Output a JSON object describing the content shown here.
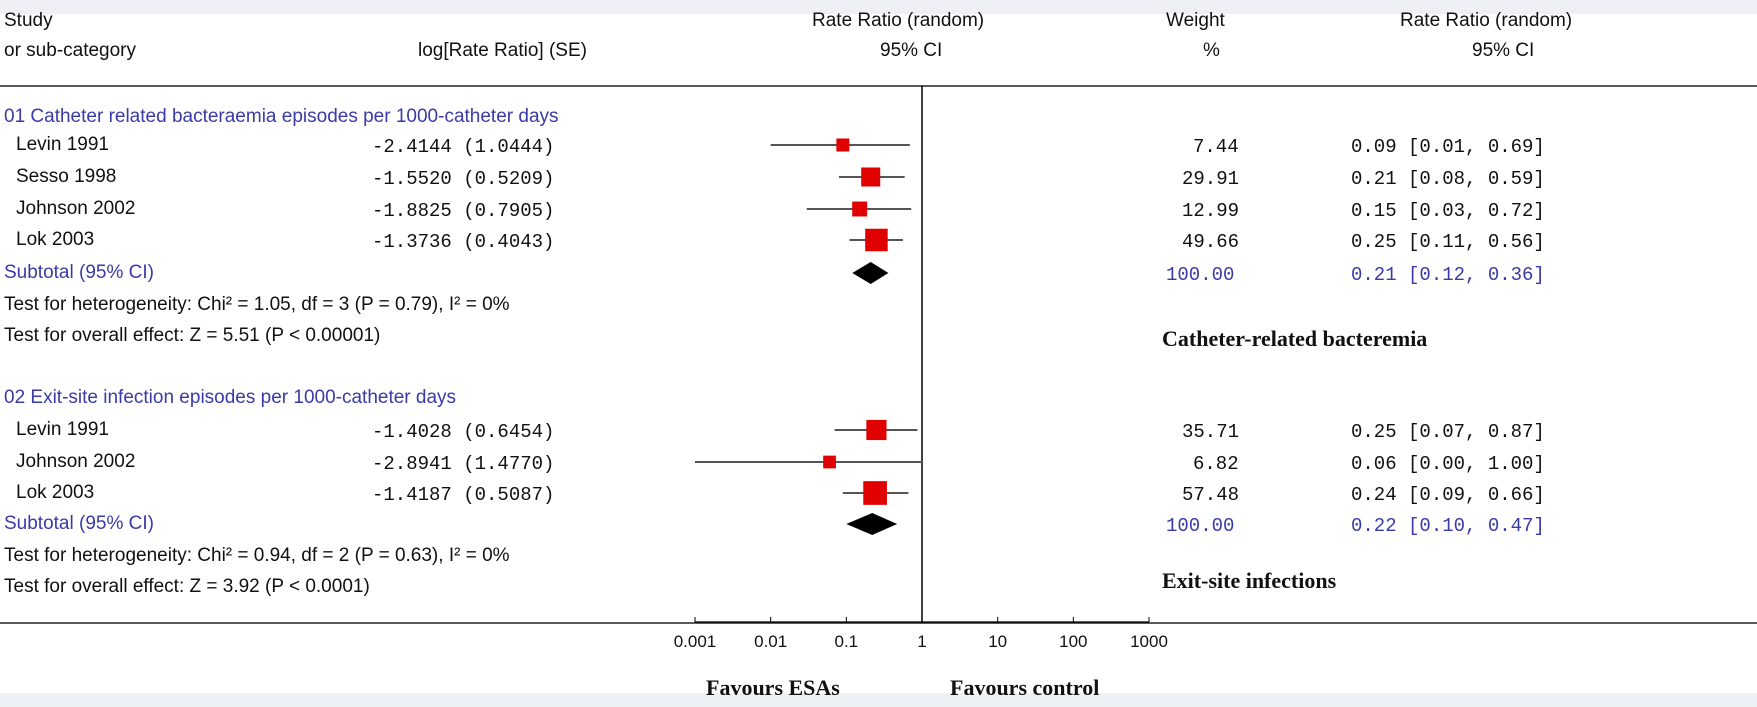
{
  "header": {
    "study_l1": "Study",
    "study_l2": "or sub-category",
    "logrr": "log[Rate Ratio] (SE)",
    "rr_l1": "Rate Ratio (random)",
    "rr_l2": "95% CI",
    "weight_l1": "Weight",
    "weight_l2": "%",
    "rr2_l1": "Rate Ratio (random)",
    "rr2_l2": "95% CI"
  },
  "groups": [
    {
      "title": "01 Catheter related bacteraemia episodes per 1000-catheter days",
      "studies": [
        {
          "name": "Levin 1991",
          "logrr": "-2.4144 (1.0444)",
          "weight": "7.44",
          "ci_text": "0.09 [0.01, 0.69]"
        },
        {
          "name": "Sesso 1998",
          "logrr": "-1.5520 (0.5209)",
          "weight": "29.91",
          "ci_text": "0.21 [0.08, 0.59]"
        },
        {
          "name": "Johnson 2002",
          "logrr": "-1.8825 (0.7905)",
          "weight": "12.99",
          "ci_text": "0.15 [0.03, 0.72]"
        },
        {
          "name": "Lok 2003",
          "logrr": "-1.3736 (0.4043)",
          "weight": "49.66",
          "ci_text": "0.25 [0.11, 0.56]"
        }
      ],
      "subtotal": {
        "label": "Subtotal (95% CI)",
        "weight": "100.00",
        "ci_text": "0.21 [0.12, 0.36]"
      },
      "heterogeneity": "Test for heterogeneity: Chi² = 1.05, df = 3 (P = 0.79), I² = 0%",
      "overall": "Test for overall effect: Z = 5.51 (P < 0.00001)",
      "annotation": "Catheter-related bacteremia"
    },
    {
      "title": "02 Exit-site infection episodes per 1000-catheter days",
      "studies": [
        {
          "name": "Levin 1991",
          "logrr": "-1.4028 (0.6454)",
          "weight": "35.71",
          "ci_text": "0.25 [0.07, 0.87]"
        },
        {
          "name": "Johnson 2002",
          "logrr": "-2.8941 (1.4770)",
          "weight": "6.82",
          "ci_text": "0.06 [0.00, 1.00]"
        },
        {
          "name": "Lok 2003",
          "logrr": "-1.4187 (0.5087)",
          "weight": "57.48",
          "ci_text": "0.24 [0.09, 0.66]"
        }
      ],
      "subtotal": {
        "label": "Subtotal (95% CI)",
        "weight": "100.00",
        "ci_text": "0.22 [0.10, 0.47]"
      },
      "heterogeneity": "Test for heterogeneity: Chi² = 0.94, df = 2 (P = 0.63), I² = 0%",
      "overall": "Test for overall effect: Z = 3.92 (P < 0.0001)",
      "annotation": "Exit-site infections"
    }
  ],
  "footer": {
    "favours_left": "Favours ESAs",
    "favours_right": "Favours control"
  },
  "chart_data": {
    "type": "forest",
    "scale": "log",
    "xlim": [
      0.001,
      1000
    ],
    "ticks": [
      0.001,
      0.01,
      0.1,
      1,
      10,
      100,
      1000
    ],
    "tick_labels": [
      "0.001",
      "0.01",
      "0.1",
      "1",
      "10",
      "100",
      "1000"
    ],
    "null_line": 1,
    "colors": {
      "square": "#e00000",
      "ci_line": "#555555",
      "diamond": "#000000",
      "axis": "#000000"
    },
    "groups": [
      {
        "studies": [
          {
            "rr": 0.09,
            "lo": 0.01,
            "hi": 0.69,
            "weight": 7.44
          },
          {
            "rr": 0.21,
            "lo": 0.08,
            "hi": 0.59,
            "weight": 29.91
          },
          {
            "rr": 0.15,
            "lo": 0.03,
            "hi": 0.72,
            "weight": 12.99
          },
          {
            "rr": 0.25,
            "lo": 0.11,
            "hi": 0.56,
            "weight": 49.66
          }
        ],
        "subtotal": {
          "rr": 0.21,
          "lo": 0.12,
          "hi": 0.36
        }
      },
      {
        "studies": [
          {
            "rr": 0.25,
            "lo": 0.07,
            "hi": 0.87,
            "weight": 35.71
          },
          {
            "rr": 0.06,
            "lo": 0.0,
            "hi": 1.0,
            "weight": 6.82
          },
          {
            "rr": 0.24,
            "lo": 0.09,
            "hi": 0.66,
            "weight": 57.48
          }
        ],
        "subtotal": {
          "rr": 0.22,
          "lo": 0.1,
          "hi": 0.47
        }
      }
    ]
  }
}
